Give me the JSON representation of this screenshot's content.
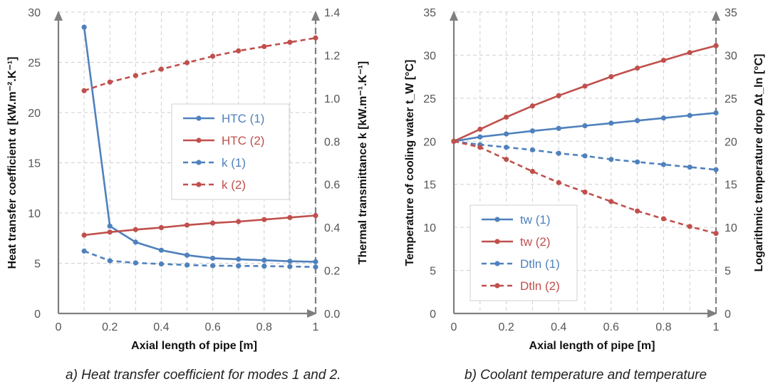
{
  "chart_data": [
    {
      "type": "line",
      "xlabel": "Axial length of pipe [m]",
      "ylabel": "Heat transfer coefficient α [kW.m⁻².K⁻¹]",
      "y2label": "Thermal transmittance k [kW.m⁻¹.K⁻¹]",
      "xlim": [
        0,
        1
      ],
      "ylim": [
        0,
        30
      ],
      "y2lim": [
        0,
        1.4
      ],
      "xticks": [
        "0",
        "0.2",
        "0.4",
        "0.6",
        "0.8",
        "1"
      ],
      "yticks": [
        "0",
        "5",
        "10",
        "15",
        "20",
        "25",
        "30"
      ],
      "y2ticks": [
        "0.0",
        "0.2",
        "0.4",
        "0.6",
        "0.8",
        "1.0",
        "1.2",
        "1.4"
      ],
      "grid": true,
      "legend": "right",
      "series": [
        {
          "name": "HTC (1)",
          "axis": "left",
          "color": "#4f81bd",
          "dash": false,
          "x": [
            0.1,
            0.2,
            0.3,
            0.4,
            0.5,
            0.6,
            0.7,
            0.8,
            0.9,
            1.0
          ],
          "y": [
            28.5,
            8.7,
            7.1,
            6.3,
            5.8,
            5.5,
            5.4,
            5.3,
            5.2,
            5.15
          ]
        },
        {
          "name": "HTC (2)",
          "axis": "left",
          "color": "#c0504d",
          "dash": false,
          "x": [
            0.1,
            0.2,
            0.3,
            0.4,
            0.5,
            0.6,
            0.7,
            0.8,
            0.9,
            1.0
          ],
          "y": [
            7.8,
            8.1,
            8.35,
            8.55,
            8.8,
            9.0,
            9.15,
            9.35,
            9.55,
            9.75
          ]
        },
        {
          "name": "k (1)",
          "axis": "right",
          "color": "#4f81bd",
          "dash": true,
          "x": [
            0.1,
            0.2,
            0.3,
            0.4,
            0.5,
            0.6,
            0.7,
            0.8,
            0.9,
            1.0
          ],
          "y": [
            0.29,
            0.245,
            0.235,
            0.23,
            0.225,
            0.222,
            0.221,
            0.22,
            0.218,
            0.216
          ]
        },
        {
          "name": "k (2)",
          "axis": "right",
          "color": "#c0504d",
          "dash": true,
          "x": [
            0.1,
            0.2,
            0.3,
            0.4,
            0.5,
            0.6,
            0.7,
            0.8,
            0.9,
            1.0
          ],
          "y": [
            1.035,
            1.075,
            1.105,
            1.135,
            1.165,
            1.195,
            1.22,
            1.24,
            1.26,
            1.28
          ]
        }
      ]
    },
    {
      "type": "line",
      "xlabel": "Axial length of pipe [m]",
      "ylabel": "Temperature of cooling water t_W [°C]",
      "y2label": "Logarithmic temperature drop Δt_ln [°C]",
      "xlim": [
        0,
        1
      ],
      "ylim": [
        0,
        35
      ],
      "y2lim": [
        0,
        35
      ],
      "xticks": [
        "0",
        "0.2",
        "0.4",
        "0.6",
        "0.8",
        "1"
      ],
      "yticks": [
        "0",
        "5",
        "10",
        "15",
        "20",
        "25",
        "30",
        "35"
      ],
      "y2ticks": [
        "0",
        "5",
        "10",
        "15",
        "20",
        "25",
        "30",
        "35"
      ],
      "grid": true,
      "legend": "bottom-left",
      "series": [
        {
          "name": "tw (1)",
          "axis": "left",
          "color": "#4f81bd",
          "dash": false,
          "x": [
            0,
            0.1,
            0.2,
            0.3,
            0.4,
            0.5,
            0.6,
            0.7,
            0.8,
            0.9,
            1.0
          ],
          "y": [
            20,
            20.5,
            20.85,
            21.2,
            21.5,
            21.8,
            22.1,
            22.4,
            22.7,
            23.0,
            23.3
          ]
        },
        {
          "name": "tw (2)",
          "axis": "left",
          "color": "#c0504d",
          "dash": false,
          "x": [
            0,
            0.1,
            0.2,
            0.3,
            0.4,
            0.5,
            0.6,
            0.7,
            0.8,
            0.9,
            1.0
          ],
          "y": [
            20,
            21.4,
            22.8,
            24.1,
            25.3,
            26.4,
            27.5,
            28.5,
            29.4,
            30.3,
            31.1
          ]
        },
        {
          "name": "Dtln (1)",
          "axis": "right",
          "color": "#4f81bd",
          "dash": true,
          "x": [
            0,
            0.1,
            0.2,
            0.3,
            0.4,
            0.5,
            0.6,
            0.7,
            0.8,
            0.9,
            1.0
          ],
          "y": [
            20,
            19.6,
            19.3,
            19.0,
            18.6,
            18.3,
            17.9,
            17.6,
            17.3,
            17.0,
            16.7
          ]
        },
        {
          "name": "Dtln (2)",
          "axis": "right",
          "color": "#c0504d",
          "dash": true,
          "x": [
            0,
            0.1,
            0.2,
            0.3,
            0.4,
            0.5,
            0.6,
            0.7,
            0.8,
            0.9,
            1.0
          ],
          "y": [
            20,
            19.3,
            17.9,
            16.5,
            15.2,
            14.1,
            13.0,
            11.9,
            11.0,
            10.1,
            9.3
          ]
        }
      ]
    }
  ],
  "captions": {
    "a": "a) Heat transfer coefficient for modes 1 and 2.",
    "b": "b) Coolant temperature and temperature"
  }
}
